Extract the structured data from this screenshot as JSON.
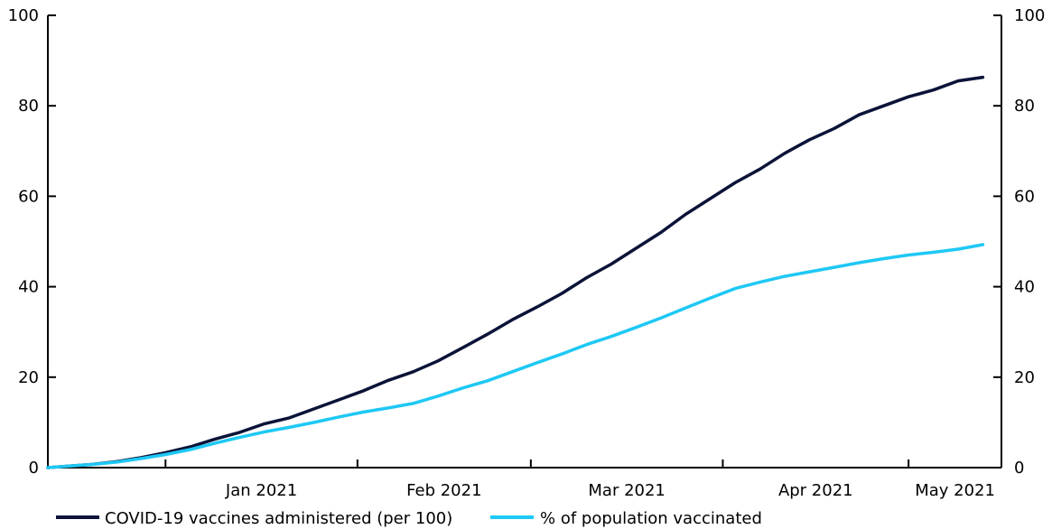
{
  "chart_data": {
    "type": "line",
    "title": "",
    "xlabel": "",
    "ylabel": "",
    "ylim": [
      0,
      100
    ],
    "y_ticks": [
      0,
      20,
      40,
      60,
      80,
      100
    ],
    "y_tick_labels": [
      "0",
      "20",
      "40",
      "60",
      "80",
      "100"
    ],
    "y_axes": "left and right (same scale)",
    "grid": false,
    "legend_placement": "bottom",
    "x_range": [
      "2020-12-13",
      "2021-05-16"
    ],
    "x_tick_labels": [
      {
        "date": "2021-01-01",
        "label": "Jan 2021"
      },
      {
        "date": "2021-02-01",
        "label": "Feb 2021"
      },
      {
        "date": "2021-03-01",
        "label": "Mar 2021"
      },
      {
        "date": "2021-04-01",
        "label": "Apr 2021"
      },
      {
        "date": "2021-05-01",
        "label": "May 2021"
      }
    ],
    "series": [
      {
        "name": "COVID-19 vaccines administered (per 100)",
        "color": "#0b1338",
        "points": [
          [
            "2020-12-13",
            0
          ],
          [
            "2020-12-16",
            0.3
          ],
          [
            "2020-12-20",
            0.7
          ],
          [
            "2020-12-24",
            1.3
          ],
          [
            "2020-12-28",
            2.2
          ],
          [
            "2021-01-01",
            3.3
          ],
          [
            "2021-01-05",
            4.6
          ],
          [
            "2021-01-09",
            6.3
          ],
          [
            "2021-01-13",
            7.8
          ],
          [
            "2021-01-17",
            9.7
          ],
          [
            "2021-01-21",
            11.0
          ],
          [
            "2021-01-25",
            13.0
          ],
          [
            "2021-01-29",
            15.0
          ],
          [
            "2021-02-02",
            17.0
          ],
          [
            "2021-02-06",
            19.3
          ],
          [
            "2021-02-10",
            21.2
          ],
          [
            "2021-02-14",
            23.6
          ],
          [
            "2021-02-18",
            26.5
          ],
          [
            "2021-02-22",
            29.5
          ],
          [
            "2021-02-26",
            32.7
          ],
          [
            "2021-03-02",
            35.5
          ],
          [
            "2021-03-06",
            38.5
          ],
          [
            "2021-03-10",
            42.0
          ],
          [
            "2021-03-14",
            45.0
          ],
          [
            "2021-03-18",
            48.5
          ],
          [
            "2021-03-22",
            52.0
          ],
          [
            "2021-03-26",
            56.0
          ],
          [
            "2021-03-30",
            59.5
          ],
          [
            "2021-04-03",
            63.0
          ],
          [
            "2021-04-07",
            66.0
          ],
          [
            "2021-04-11",
            69.5
          ],
          [
            "2021-04-15",
            72.5
          ],
          [
            "2021-04-19",
            75.0
          ],
          [
            "2021-04-23",
            78.0
          ],
          [
            "2021-04-27",
            80.0
          ],
          [
            "2021-05-01",
            82.0
          ],
          [
            "2021-05-05",
            83.5
          ],
          [
            "2021-05-09",
            85.5
          ],
          [
            "2021-05-13",
            86.3
          ]
        ]
      },
      {
        "name": "% of population vaccinated",
        "color": "#1ec8f5",
        "points": [
          [
            "2020-12-13",
            0
          ],
          [
            "2020-12-16",
            0.3
          ],
          [
            "2020-12-20",
            0.7
          ],
          [
            "2020-12-24",
            1.2
          ],
          [
            "2020-12-28",
            2.0
          ],
          [
            "2021-01-01",
            2.9
          ],
          [
            "2021-01-05",
            4.0
          ],
          [
            "2021-01-09",
            5.4
          ],
          [
            "2021-01-13",
            6.7
          ],
          [
            "2021-01-17",
            7.9
          ],
          [
            "2021-01-21",
            8.9
          ],
          [
            "2021-01-25",
            10.0
          ],
          [
            "2021-01-29",
            11.2
          ],
          [
            "2021-02-02",
            12.3
          ],
          [
            "2021-02-06",
            13.2
          ],
          [
            "2021-02-10",
            14.2
          ],
          [
            "2021-02-14",
            15.8
          ],
          [
            "2021-02-18",
            17.6
          ],
          [
            "2021-02-22",
            19.2
          ],
          [
            "2021-02-26",
            21.2
          ],
          [
            "2021-03-02",
            23.2
          ],
          [
            "2021-03-06",
            25.1
          ],
          [
            "2021-03-10",
            27.2
          ],
          [
            "2021-03-14",
            29.0
          ],
          [
            "2021-03-18",
            31.0
          ],
          [
            "2021-03-22",
            33.1
          ],
          [
            "2021-03-26",
            35.3
          ],
          [
            "2021-03-30",
            37.5
          ],
          [
            "2021-04-03",
            39.6
          ],
          [
            "2021-04-07",
            41.0
          ],
          [
            "2021-04-11",
            42.3
          ],
          [
            "2021-04-15",
            43.3
          ],
          [
            "2021-04-19",
            44.3
          ],
          [
            "2021-04-23",
            45.3
          ],
          [
            "2021-04-27",
            46.2
          ],
          [
            "2021-05-01",
            47.0
          ],
          [
            "2021-05-05",
            47.6
          ],
          [
            "2021-05-09",
            48.3
          ],
          [
            "2021-05-13",
            49.3
          ]
        ]
      }
    ]
  }
}
